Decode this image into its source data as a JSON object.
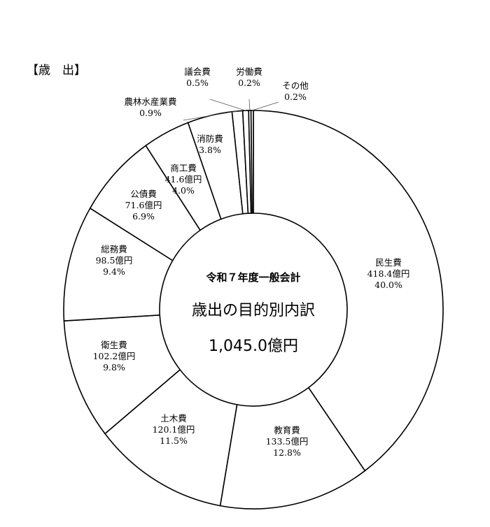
{
  "heading": "【歳　出】",
  "chart_data": {
    "type": "pie",
    "style": "donut",
    "center_text": {
      "line1": "令和７年度一般会計",
      "line2": "歳出の目的別内訳",
      "line3": "1,045.0億円"
    },
    "start": "top",
    "direction": "clockwise",
    "slices": [
      {
        "label": "民生費",
        "amount": "418.4億円",
        "percent": 40.0
      },
      {
        "label": "教育費",
        "amount": "133.5億円",
        "percent": 12.8
      },
      {
        "label": "土木費",
        "amount": "120.1億円",
        "percent": 11.5
      },
      {
        "label": "衛生費",
        "amount": "102.2億円",
        "percent": 9.8
      },
      {
        "label": "総務費",
        "amount": "98.5億円",
        "percent": 9.4
      },
      {
        "label": "公債費",
        "amount": "71.6億円",
        "percent": 6.9
      },
      {
        "label": "商工費",
        "amount": "41.6億円",
        "percent": 4.0
      },
      {
        "label": "消防費",
        "percent": 3.8
      },
      {
        "label": "農林水産業費",
        "percent": 0.9
      },
      {
        "label": "議会費",
        "percent": 0.5
      },
      {
        "label": "労働費",
        "percent": 0.2
      },
      {
        "label": "その他",
        "percent": 0.2
      }
    ],
    "colors": {
      "fill": "#ffffff",
      "stroke": "#000000"
    }
  }
}
